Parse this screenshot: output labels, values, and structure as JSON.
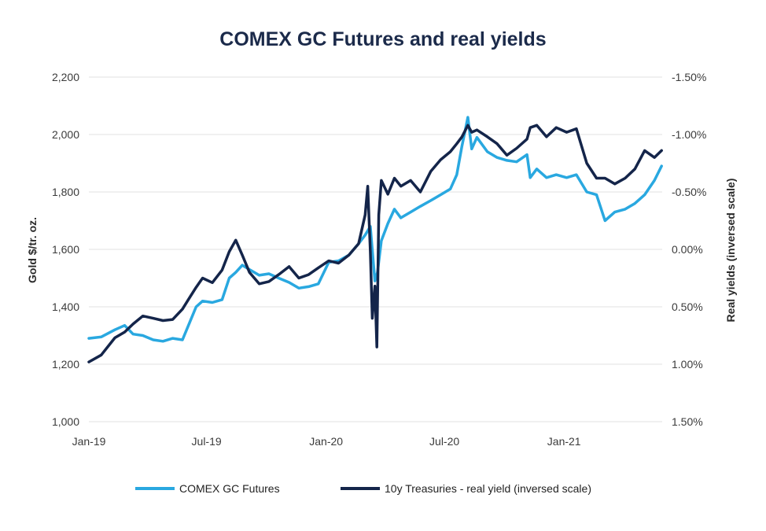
{
  "chart_data": {
    "type": "line",
    "title": "COMEX GC Futures and real yields",
    "ylabel": "Gold $/tr. oz.",
    "y2label": "Real yields (inversed scale)",
    "ylim": [
      1000,
      2200
    ],
    "y2lim": [
      1.5,
      -1.5
    ],
    "y2_inverted": true,
    "grid": true,
    "legend_position": "bottom",
    "yticks": [
      "2,200",
      "2,000",
      "1,800",
      "1,600",
      "1,400",
      "1,200",
      "1,000"
    ],
    "y2ticks": [
      "-1.50%",
      "-1.00%",
      "-0.50%",
      "0.00%",
      "0.50%",
      "1.00%",
      "1.50%"
    ],
    "xticks": [
      "Jan-19",
      "Jul-19",
      "Jan-20",
      "Jul-20",
      "Jan-21"
    ],
    "series": [
      {
        "name": "COMEX GC Futures",
        "color": "#29a8e0",
        "axis": "left",
        "x": [
          "2019-01-01",
          "2019-01-20",
          "2019-02-10",
          "2019-02-25",
          "2019-03-10",
          "2019-03-25",
          "2019-04-10",
          "2019-04-25",
          "2019-05-10",
          "2019-05-25",
          "2019-06-05",
          "2019-06-15",
          "2019-06-25",
          "2019-07-10",
          "2019-07-25",
          "2019-08-05",
          "2019-08-15",
          "2019-08-25",
          "2019-09-05",
          "2019-09-20",
          "2019-10-05",
          "2019-10-20",
          "2019-11-05",
          "2019-11-20",
          "2019-12-05",
          "2019-12-20",
          "2020-01-05",
          "2020-01-20",
          "2020-02-05",
          "2020-02-20",
          "2020-03-01",
          "2020-03-09",
          "2020-03-16",
          "2020-03-20",
          "2020-03-26",
          "2020-04-05",
          "2020-04-15",
          "2020-04-25",
          "2020-05-10",
          "2020-05-25",
          "2020-06-10",
          "2020-06-25",
          "2020-07-10",
          "2020-07-20",
          "2020-07-28",
          "2020-08-06",
          "2020-08-12",
          "2020-08-20",
          "2020-09-05",
          "2020-09-20",
          "2020-10-05",
          "2020-10-20",
          "2020-11-05",
          "2020-11-10",
          "2020-11-20",
          "2020-12-05",
          "2020-12-20",
          "2021-01-05",
          "2021-01-20",
          "2021-02-05",
          "2021-02-20",
          "2021-03-05",
          "2021-03-20",
          "2021-04-05",
          "2021-04-20",
          "2021-05-05",
          "2021-05-20",
          "2021-05-31"
        ],
        "values": [
          1290,
          1295,
          1320,
          1335,
          1305,
          1300,
          1285,
          1280,
          1290,
          1285,
          1345,
          1400,
          1420,
          1415,
          1425,
          1500,
          1520,
          1545,
          1530,
          1510,
          1515,
          1500,
          1485,
          1465,
          1470,
          1480,
          1555,
          1560,
          1580,
          1620,
          1650,
          1680,
          1490,
          1520,
          1630,
          1690,
          1740,
          1710,
          1730,
          1750,
          1770,
          1790,
          1810,
          1860,
          1960,
          2060,
          1950,
          1990,
          1940,
          1920,
          1910,
          1905,
          1930,
          1850,
          1880,
          1850,
          1860,
          1850,
          1860,
          1800,
          1790,
          1700,
          1730,
          1740,
          1760,
          1790,
          1840,
          1890
        ]
      },
      {
        "name": "10y Treasuries - real yield (inversed scale)",
        "color": "#14254a",
        "axis": "right",
        "x": [
          "2019-01-01",
          "2019-01-20",
          "2019-02-10",
          "2019-02-25",
          "2019-03-10",
          "2019-03-25",
          "2019-04-10",
          "2019-04-25",
          "2019-05-10",
          "2019-05-25",
          "2019-06-05",
          "2019-06-15",
          "2019-06-25",
          "2019-07-10",
          "2019-07-25",
          "2019-08-05",
          "2019-08-15",
          "2019-08-25",
          "2019-09-05",
          "2019-09-20",
          "2019-10-05",
          "2019-10-20",
          "2019-11-05",
          "2019-11-20",
          "2019-12-05",
          "2019-12-20",
          "2020-01-05",
          "2020-01-20",
          "2020-02-05",
          "2020-02-20",
          "2020-03-01",
          "2020-03-05",
          "2020-03-09",
          "2020-03-12",
          "2020-03-16",
          "2020-03-19",
          "2020-03-22",
          "2020-03-26",
          "2020-04-05",
          "2020-04-15",
          "2020-04-25",
          "2020-05-10",
          "2020-05-25",
          "2020-06-10",
          "2020-06-25",
          "2020-07-10",
          "2020-07-20",
          "2020-07-28",
          "2020-08-06",
          "2020-08-12",
          "2020-08-20",
          "2020-09-05",
          "2020-09-20",
          "2020-10-05",
          "2020-10-20",
          "2020-11-05",
          "2020-11-10",
          "2020-11-20",
          "2020-12-05",
          "2020-12-20",
          "2021-01-05",
          "2021-01-20",
          "2021-02-05",
          "2021-02-20",
          "2021-03-05",
          "2021-03-20",
          "2021-04-05",
          "2021-04-20",
          "2021-05-05",
          "2021-05-20",
          "2021-05-31"
        ],
        "values": [
          0.98,
          0.92,
          0.77,
          0.72,
          0.65,
          0.58,
          0.6,
          0.62,
          0.61,
          0.52,
          0.42,
          0.33,
          0.25,
          0.29,
          0.18,
          0.02,
          -0.08,
          0.05,
          0.2,
          0.3,
          0.28,
          0.22,
          0.15,
          0.25,
          0.22,
          0.16,
          0.1,
          0.12,
          0.05,
          -0.05,
          -0.3,
          -0.55,
          0.02,
          0.6,
          0.32,
          0.85,
          -0.3,
          -0.6,
          -0.48,
          -0.62,
          -0.55,
          -0.6,
          -0.5,
          -0.68,
          -0.78,
          -0.85,
          -0.92,
          -0.98,
          -1.08,
          -1.02,
          -1.04,
          -0.98,
          -0.92,
          -0.82,
          -0.88,
          -0.96,
          -1.06,
          -1.08,
          -0.98,
          -1.06,
          -1.02,
          -1.05,
          -0.75,
          -0.62,
          -0.62,
          -0.57,
          -0.62,
          -0.7,
          -0.86,
          -0.8,
          -0.86
        ]
      }
    ]
  }
}
